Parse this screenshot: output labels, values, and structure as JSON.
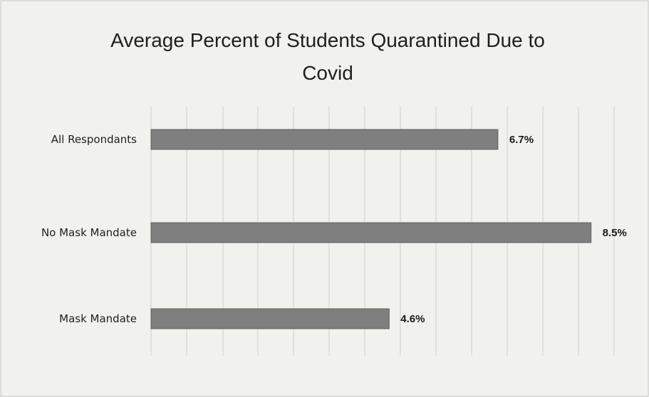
{
  "chart_data": {
    "type": "bar",
    "orientation": "horizontal",
    "title": "Average Percent of Students Quarantined Due to Covid",
    "title_lines": [
      "Average Percent of Students Quarantined Due to",
      "Covid"
    ],
    "categories": [
      "All Respondants",
      "No Mask Mandate",
      "Mask Mandate"
    ],
    "values": [
      6.7,
      8.5,
      4.6
    ],
    "data_labels": [
      "6.7%",
      "8.5%",
      "4.6%"
    ],
    "xlim": [
      0,
      9
    ],
    "grid": true,
    "legend": "none",
    "bar_color": "#7f7f7f"
  }
}
